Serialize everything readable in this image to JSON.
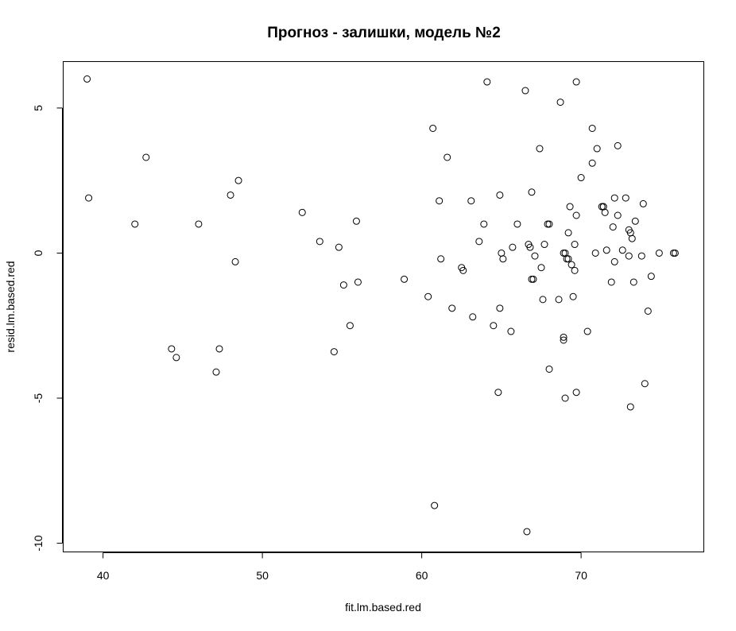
{
  "chart_data": {
    "type": "scatter",
    "title": "Прогноз - залишки, модель №2",
    "xlabel": "fit.lm.based.red",
    "ylabel": "resid.lm.based.red",
    "xlim": [
      37.5,
      77.7
    ],
    "ylim": [
      -10.3,
      6.6
    ],
    "xticks": [
      40,
      50,
      60,
      70
    ],
    "yticks": [
      -10,
      -5,
      0,
      5
    ],
    "grid": false,
    "series": [
      {
        "x": [
          39.0,
          39.1,
          42.0,
          42.7,
          44.3,
          44.6,
          46.0,
          47.1,
          47.3,
          48.0,
          48.3,
          48.5,
          52.5,
          53.6,
          54.5,
          54.8,
          55.1,
          55.5,
          55.9,
          56.0,
          58.9,
          60.4,
          60.7,
          60.8,
          61.1,
          61.2,
          61.6,
          61.9,
          62.5,
          62.6,
          63.1,
          63.2,
          63.6,
          63.9,
          64.1,
          64.5,
          64.8,
          64.9,
          64.9,
          65.0,
          65.1,
          65.6,
          65.7,
          66.0,
          66.5,
          66.6,
          66.7,
          66.8,
          66.9,
          66.9,
          67.0,
          67.1,
          67.4,
          67.5,
          67.6,
          67.7,
          67.9,
          68.0,
          68.0,
          68.6,
          68.7,
          68.9,
          68.9,
          68.9,
          69.0,
          69.0,
          69.1,
          69.2,
          69.2,
          69.3,
          69.4,
          69.5,
          69.6,
          69.6,
          69.7,
          69.7,
          69.7,
          70.0,
          70.4,
          70.7,
          70.7,
          70.9,
          71.0,
          71.3,
          71.4,
          71.4,
          71.5,
          71.6,
          71.9,
          72.0,
          72.1,
          72.1,
          72.3,
          72.3,
          72.6,
          72.8,
          73.0,
          73.0,
          73.1,
          73.1,
          73.2,
          73.3,
          73.4,
          73.8,
          73.9,
          74.0,
          74.2,
          74.4,
          74.9,
          75.8,
          75.9
        ],
        "y": [
          6.0,
          1.9,
          1.0,
          3.3,
          -3.3,
          -3.6,
          1.0,
          -4.1,
          -3.3,
          2.0,
          -0.3,
          2.5,
          1.4,
          0.4,
          -3.4,
          0.2,
          -1.1,
          -2.5,
          1.1,
          -1.0,
          -0.9,
          -1.5,
          4.3,
          -8.7,
          1.8,
          -0.2,
          3.3,
          -1.9,
          -0.5,
          -0.6,
          1.8,
          -2.2,
          0.4,
          1.0,
          5.9,
          -2.5,
          -4.8,
          -1.9,
          2.0,
          0.0,
          -0.2,
          -2.7,
          0.2,
          1.0,
          5.6,
          -9.6,
          0.3,
          0.2,
          -0.9,
          2.1,
          -0.9,
          -0.1,
          3.6,
          -0.5,
          -1.6,
          0.3,
          1.0,
          1.0,
          -4.0,
          -1.6,
          5.2,
          0.0,
          -2.9,
          -3.0,
          -5.0,
          0.0,
          -0.2,
          -0.2,
          0.7,
          1.6,
          -0.4,
          -1.5,
          -0.6,
          0.3,
          1.3,
          -4.8,
          5.9,
          2.6,
          -2.7,
          4.3,
          3.1,
          0.0,
          3.6,
          1.6,
          1.6,
          1.6,
          1.4,
          0.1,
          -1.0,
          0.9,
          1.9,
          -0.3,
          3.7,
          1.3,
          0.1,
          1.9,
          -0.1,
          0.8,
          0.7,
          -5.3,
          0.5,
          -1.0,
          1.1,
          -0.1,
          1.7,
          -4.5,
          -2.0,
          -0.8,
          0.0,
          0.0,
          0.0
        ]
      }
    ]
  }
}
